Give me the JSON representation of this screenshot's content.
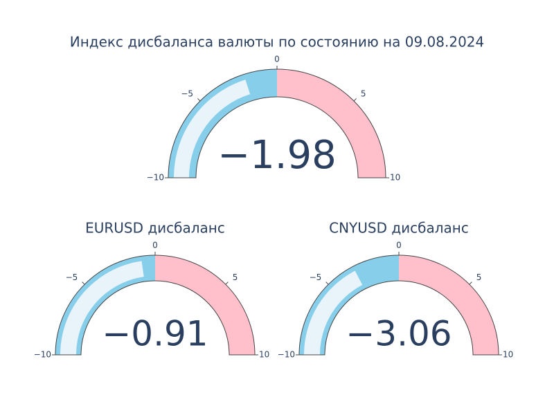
{
  "chart_data": [
    {
      "type": "gauge",
      "title": "Индекс дисбаланса валюты по состоянию на 09.08.2024",
      "value": -1.98,
      "value_label": "−1.98",
      "bar_color": "#e8f4fa",
      "xlim": [
        -10,
        10
      ],
      "xticks": [
        {
          "value": -10,
          "label": "−10"
        },
        {
          "value": -5,
          "label": "−5"
        },
        0,
        5,
        10
      ],
      "steps": [
        {
          "range": [
            -10,
            0
          ],
          "color": "#87ceeb"
        },
        {
          "range": [
            0,
            10
          ],
          "color": "#ffc0cb"
        }
      ]
    },
    {
      "type": "gauge",
      "title": "EURUSD дисбаланс",
      "value": -0.91,
      "value_label": "−0.91",
      "bar_color": "#e8f4fa",
      "xlim": [
        -10,
        10
      ],
      "xticks": [
        {
          "value": -10,
          "label": "−10"
        },
        {
          "value": -5,
          "label": "−5"
        },
        0,
        5,
        10
      ],
      "steps": [
        {
          "range": [
            -10,
            0
          ],
          "color": "#87ceeb"
        },
        {
          "range": [
            0,
            10
          ],
          "color": "#ffc0cb"
        }
      ]
    },
    {
      "type": "gauge",
      "title": "CNYUSD дисбаланс",
      "value": -3.06,
      "value_label": "−3.06",
      "bar_color": "#e8f4fa",
      "xlim": [
        -10,
        10
      ],
      "xticks": [
        {
          "value": -10,
          "label": "−10"
        },
        {
          "value": -5,
          "label": "−5"
        },
        0,
        5,
        10
      ],
      "steps": [
        {
          "range": [
            -10,
            0
          ],
          "color": "#87ceeb"
        },
        {
          "range": [
            0,
            10
          ],
          "color": "#ffc0cb"
        }
      ]
    }
  ]
}
